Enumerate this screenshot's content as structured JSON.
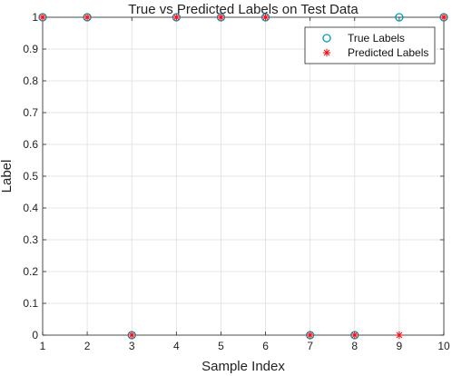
{
  "chart_data": {
    "type": "scatter",
    "title": "True vs Predicted Labels on Test Data",
    "xlabel": "Sample Index",
    "ylabel": "Label",
    "xlim": [
      1,
      10
    ],
    "ylim": [
      0,
      1
    ],
    "xticks": [
      1,
      2,
      3,
      4,
      5,
      6,
      7,
      8,
      9,
      10
    ],
    "yticks": [
      0,
      0.1,
      0.2,
      0.3,
      0.4,
      0.5,
      0.6,
      0.7,
      0.8,
      0.9,
      1
    ],
    "grid": true,
    "legend_position": "top-right",
    "series": [
      {
        "name": "True Labels",
        "marker": "circle",
        "color": "#0099b8",
        "x": [
          1,
          2,
          3,
          4,
          5,
          6,
          7,
          8,
          9,
          10
        ],
        "y": [
          1,
          1,
          0,
          1,
          1,
          1,
          0,
          0,
          1,
          1
        ]
      },
      {
        "name": "Predicted Labels",
        "marker": "asterisk",
        "color": "#e8161b",
        "x": [
          1,
          2,
          3,
          4,
          5,
          6,
          7,
          8,
          9,
          10
        ],
        "y": [
          1,
          1,
          0,
          1,
          1,
          1,
          0,
          0,
          0,
          1
        ]
      }
    ]
  }
}
